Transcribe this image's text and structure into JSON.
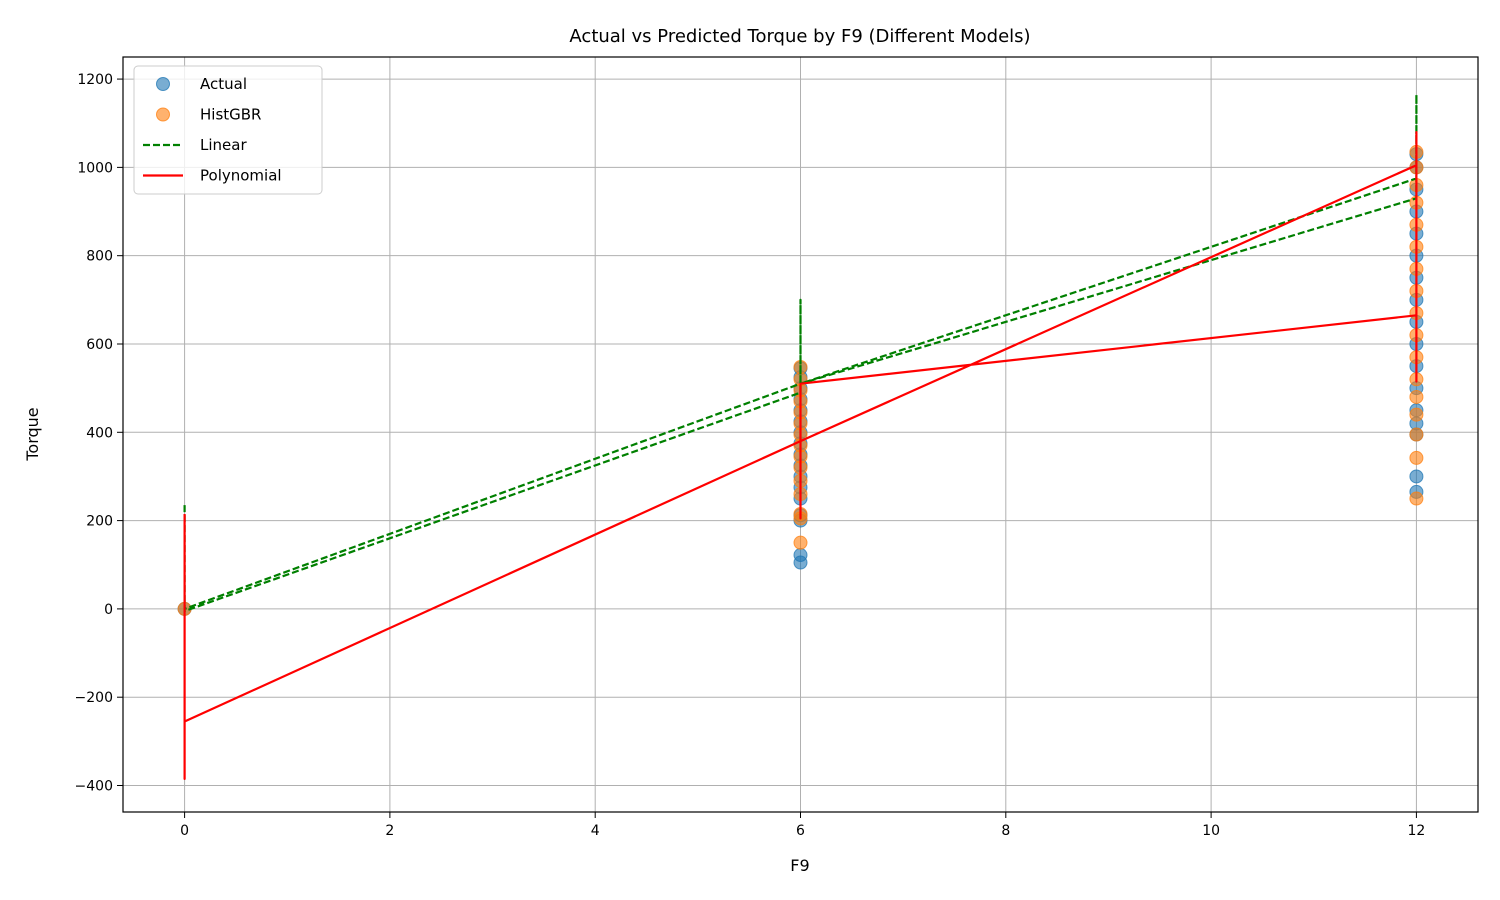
{
  "chart_data": {
    "type": "scatter",
    "title": "Actual vs Predicted Torque by F9 (Different Models)",
    "xlabel": "F9",
    "ylabel": "Torque",
    "xlim": [
      -0.6,
      12.6
    ],
    "ylim": [
      -460,
      1250
    ],
    "xticks": [
      0,
      2,
      4,
      6,
      8,
      10,
      12
    ],
    "yticks": [
      -400,
      -200,
      0,
      200,
      400,
      600,
      800,
      1000,
      1200
    ],
    "grid": true,
    "legend": {
      "placement": "top-left"
    },
    "series": [
      {
        "name": "Actual",
        "kind": "scatter",
        "color": "#1f77b4",
        "points": [
          [
            0,
            0
          ],
          [
            6,
            105
          ],
          [
            6,
            122
          ],
          [
            6,
            200
          ],
          [
            6,
            212
          ],
          [
            6,
            250
          ],
          [
            6,
            275
          ],
          [
            6,
            300
          ],
          [
            6,
            325
          ],
          [
            6,
            350
          ],
          [
            6,
            375
          ],
          [
            6,
            400
          ],
          [
            6,
            425
          ],
          [
            6,
            450
          ],
          [
            6,
            475
          ],
          [
            6,
            500
          ],
          [
            6,
            525
          ],
          [
            6,
            545
          ],
          [
            12,
            265
          ],
          [
            12,
            300
          ],
          [
            12,
            395
          ],
          [
            12,
            420
          ],
          [
            12,
            450
          ],
          [
            12,
            500
          ],
          [
            12,
            550
          ],
          [
            12,
            600
          ],
          [
            12,
            650
          ],
          [
            12,
            700
          ],
          [
            12,
            750
          ],
          [
            12,
            800
          ],
          [
            12,
            850
          ],
          [
            12,
            900
          ],
          [
            12,
            950
          ],
          [
            12,
            1000
          ],
          [
            12,
            1030
          ]
        ]
      },
      {
        "name": "HistGBR",
        "kind": "scatter",
        "color": "#ff7f0e",
        "points": [
          [
            0,
            0
          ],
          [
            6,
            150
          ],
          [
            6,
            205
          ],
          [
            6,
            215
          ],
          [
            6,
            260
          ],
          [
            6,
            290
          ],
          [
            6,
            320
          ],
          [
            6,
            345
          ],
          [
            6,
            370
          ],
          [
            6,
            395
          ],
          [
            6,
            420
          ],
          [
            6,
            445
          ],
          [
            6,
            470
          ],
          [
            6,
            495
          ],
          [
            6,
            520
          ],
          [
            6,
            548
          ],
          [
            12,
            250
          ],
          [
            12,
            342
          ],
          [
            12,
            395
          ],
          [
            12,
            440
          ],
          [
            12,
            480
          ],
          [
            12,
            520
          ],
          [
            12,
            570
          ],
          [
            12,
            620
          ],
          [
            12,
            670
          ],
          [
            12,
            720
          ],
          [
            12,
            770
          ],
          [
            12,
            820
          ],
          [
            12,
            870
          ],
          [
            12,
            920
          ],
          [
            12,
            960
          ],
          [
            12,
            1000
          ],
          [
            12,
            1035
          ]
        ]
      },
      {
        "name": "Linear",
        "kind": "line",
        "color": "#008000",
        "dash": "dashed",
        "points": [
          [
            0,
            235
          ],
          [
            0,
            -5
          ],
          [
            6,
            490
          ],
          [
            6,
            700
          ],
          [
            6,
            510
          ],
          [
            12,
            975
          ],
          [
            12,
            1165
          ],
          [
            12,
            930
          ],
          [
            6,
            510
          ],
          [
            0,
            0
          ]
        ]
      },
      {
        "name": "Polynomial",
        "kind": "line",
        "color": "#ff0000",
        "dash": "solid",
        "points": [
          [
            0,
            215
          ],
          [
            0,
            -385
          ],
          [
            0,
            -255
          ],
          [
            6,
            380
          ],
          [
            6,
            205
          ],
          [
            6,
            510
          ],
          [
            12,
            665
          ],
          [
            12,
            1080
          ],
          [
            12,
            515
          ],
          [
            12,
            1005
          ],
          [
            6,
            380
          ]
        ]
      }
    ]
  }
}
